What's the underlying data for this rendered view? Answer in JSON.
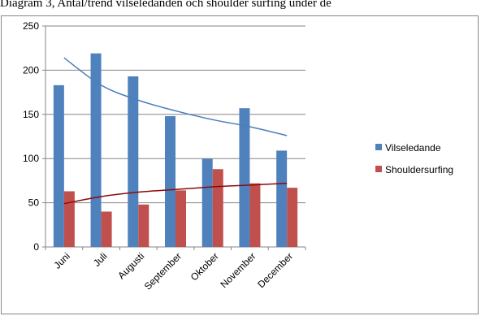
{
  "caption": "Diagram 3, Antal/trend vilseledanden och shoulder surfing under de",
  "chart_data": {
    "type": "bar",
    "categories": [
      "Juni",
      "Juli",
      "Augusti",
      "September",
      "Oktober",
      "November",
      "December"
    ],
    "series": [
      {
        "name": "Vilseledande",
        "values": [
          183,
          219,
          193,
          148,
          100,
          157,
          109
        ],
        "color": "#4F81BD"
      },
      {
        "name": "Shouldersurfing",
        "values": [
          63,
          40,
          48,
          64,
          88,
          72,
          67
        ],
        "color": "#C0504D"
      }
    ],
    "trendlines": [
      {
        "series": "Vilseledande",
        "type": "logarithmic",
        "values": [
          214,
          183,
          166,
          154,
          144,
          136,
          126
        ],
        "color": "#4A7EBB"
      },
      {
        "series": "Shouldersurfing",
        "type": "logarithmic",
        "values": [
          49,
          57,
          62,
          65,
          68,
          70,
          72
        ],
        "color": "#8B0A0A"
      }
    ],
    "ylim": [
      0,
      250
    ],
    "yticks": [
      0,
      50,
      100,
      150,
      200,
      250
    ],
    "grid": true,
    "legend_position": "right"
  }
}
